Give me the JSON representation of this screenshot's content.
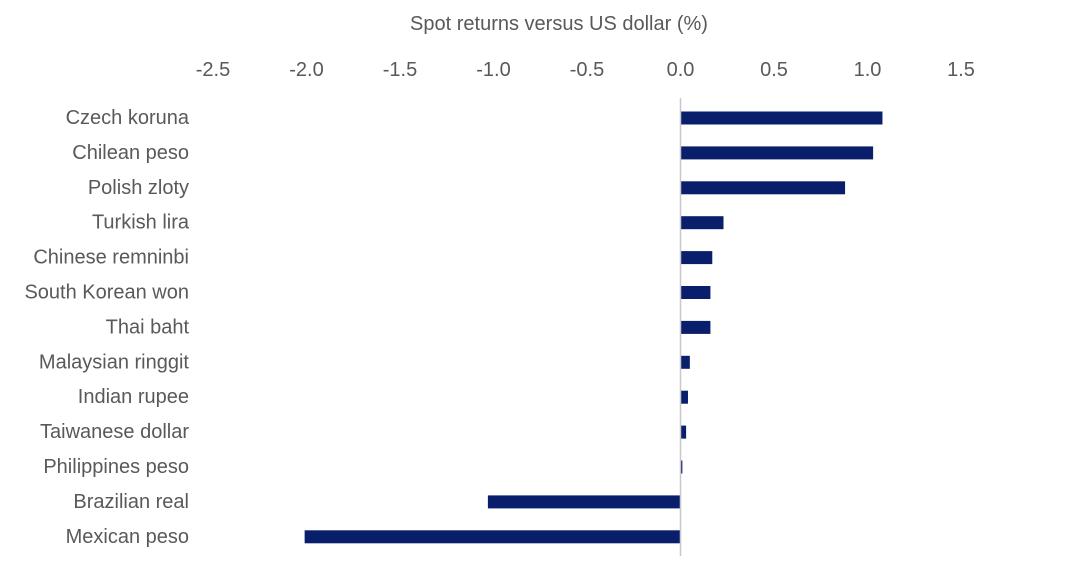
{
  "chart_data": {
    "type": "bar",
    "orientation": "horizontal",
    "title": "Spot returns versus US dollar (%)",
    "x_axis_position": "top",
    "xlim": [
      -2.5,
      1.5
    ],
    "xticks": [
      -2.5,
      -2.0,
      -1.5,
      -1.0,
      -0.5,
      0.0,
      0.5,
      1.0,
      1.5
    ],
    "xtick_labels": [
      "-2.5",
      "-2.0",
      "-1.5",
      "-1.0",
      "-0.5",
      "0.0",
      "0.5",
      "1.0",
      "1.5"
    ],
    "grid": false,
    "bar_color": "#0a1f6b",
    "categories": [
      "Czech koruna",
      "Chilean peso",
      "Polish zloty",
      "Turkish lira",
      "Chinese remninbi",
      "South Korean won",
      "Thai baht",
      "Malaysian ringgit",
      "Indian rupee",
      "Taiwanese dollar",
      "Philippines peso",
      "Brazilian real",
      "Mexican peso"
    ],
    "values": [
      1.08,
      1.03,
      0.88,
      0.23,
      0.17,
      0.16,
      0.16,
      0.05,
      0.04,
      0.03,
      0.01,
      -1.03,
      -2.01
    ]
  }
}
